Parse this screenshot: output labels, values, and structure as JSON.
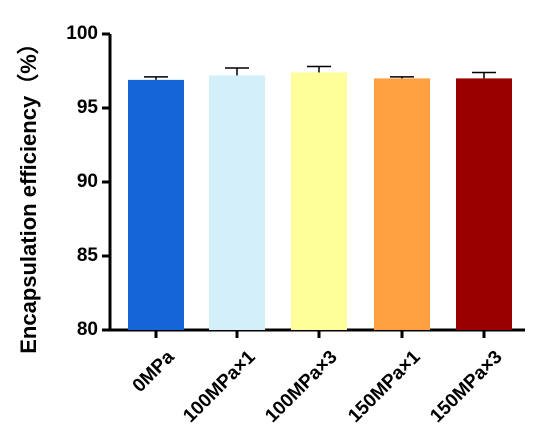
{
  "chart_data": {
    "type": "bar",
    "categories": [
      "0MPa",
      "100MPa×1",
      "100MPa×3",
      "150MPa×1",
      "150MPa×3"
    ],
    "values": [
      96.9,
      97.2,
      97.4,
      97.0,
      97.0
    ],
    "errors": [
      0.2,
      0.5,
      0.4,
      0.1,
      0.4
    ],
    "colors": [
      "#1565d8",
      "#d2effa",
      "#ffff9a",
      "#ffa040",
      "#9b0000"
    ],
    "ylabel": "Encapsulation efficiency（%）",
    "xlabel": "",
    "ylim": [
      80,
      100
    ],
    "yticks": [
      80,
      85,
      90,
      95,
      100
    ],
    "grid": false
  }
}
